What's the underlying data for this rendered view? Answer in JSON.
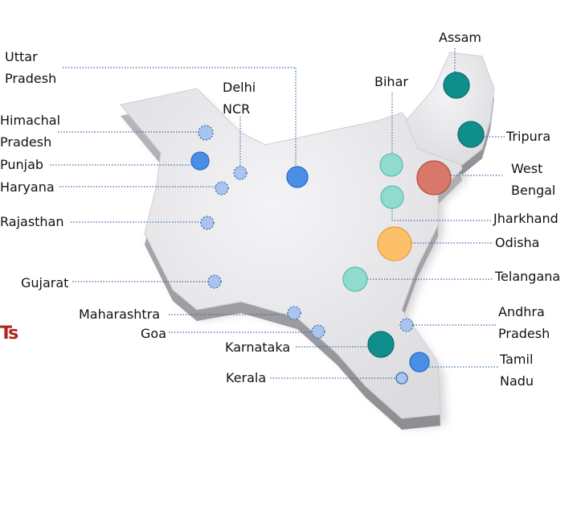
{
  "colors": {
    "teal_dark": "#0f8f8c",
    "teal_light": "#8fdccf",
    "blue": "#4a8fe6",
    "blue_pale": "#a9c4ee",
    "orange": "#fdc06a",
    "red": "#d9786a",
    "leader": "#3b6ea8",
    "map": "#e8e8ea"
  },
  "fragment_text": "Ts",
  "regions": [
    {
      "name": "Uttar\nPradesh",
      "marker": "solid-blue"
    },
    {
      "name": "Delhi\nNCR",
      "marker": "dashed-blue"
    },
    {
      "name": "Himachal\nPradesh",
      "marker": "dashed-blue"
    },
    {
      "name": "Punjab",
      "marker": "solid-blue"
    },
    {
      "name": "Haryana",
      "marker": "dashed-blue"
    },
    {
      "name": "Rajasthan",
      "marker": "dashed-blue"
    },
    {
      "name": "Gujarat",
      "marker": "dashed-blue"
    },
    {
      "name": "Maharashtra",
      "marker": "dashed-blue"
    },
    {
      "name": "Goa",
      "marker": "dashed-blue"
    },
    {
      "name": "Karnataka",
      "marker": "solid-teal-dark"
    },
    {
      "name": "Kerala",
      "marker": "solid-blue-pale"
    },
    {
      "name": "Assam",
      "marker": "solid-teal-dark"
    },
    {
      "name": "Bihar",
      "marker": "solid-teal-light"
    },
    {
      "name": "Tripura",
      "marker": "solid-teal-dark"
    },
    {
      "name": "West\nBengal",
      "marker": "solid-red"
    },
    {
      "name": "Jharkhand",
      "marker": "solid-teal-light"
    },
    {
      "name": "Odisha",
      "marker": "solid-orange"
    },
    {
      "name": "Telangana",
      "marker": "solid-teal-light"
    },
    {
      "name": "Andhra\nPradesh",
      "marker": "dashed-blue"
    },
    {
      "name": "Tamil\nNadu",
      "marker": "solid-blue"
    }
  ]
}
